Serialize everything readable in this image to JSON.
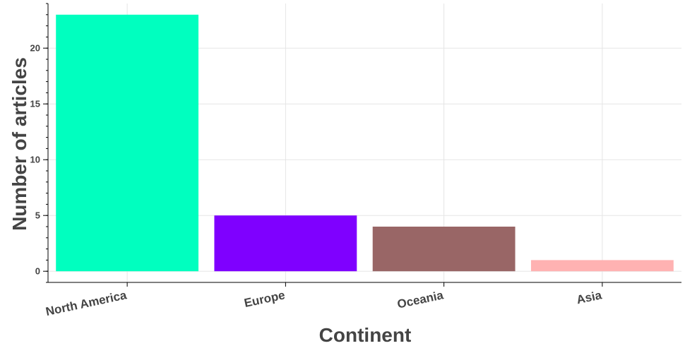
{
  "chart_data": {
    "type": "bar",
    "title": "",
    "xlabel": "Continent",
    "ylabel": "Number of articles",
    "categories": [
      "North America",
      "Europe",
      "Oceania",
      "Asia"
    ],
    "values": [
      23,
      5,
      4,
      1
    ],
    "colors": [
      "#00ffbf",
      "#7f00ff",
      "#996666",
      "#ffb2b2"
    ],
    "ylim": [
      -1,
      24
    ],
    "yticks": [
      0,
      5,
      10,
      15,
      20
    ],
    "yticklabels": [
      "0",
      "5",
      "10",
      "15",
      "20"
    ],
    "grid": true,
    "legend": "none"
  }
}
